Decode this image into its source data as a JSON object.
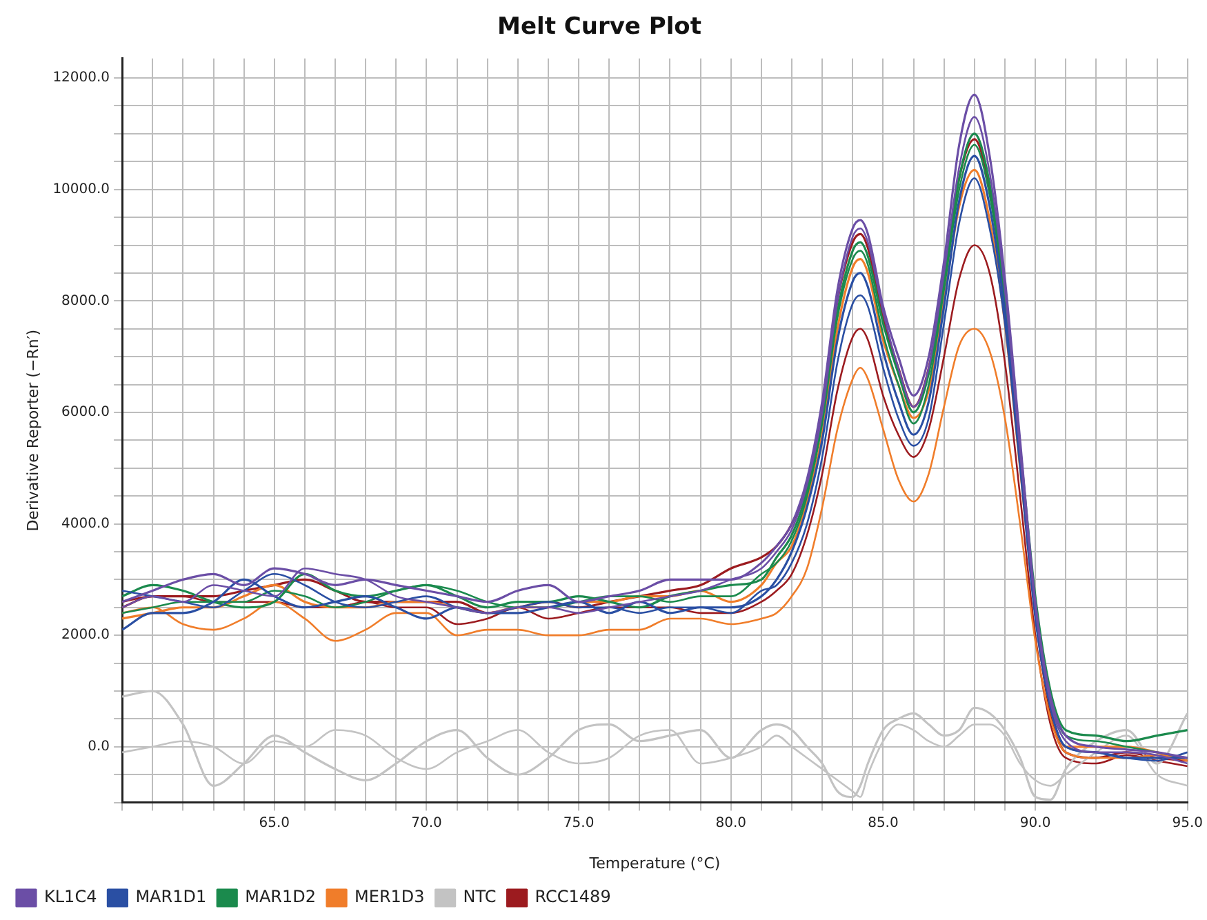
{
  "chart_data": {
    "type": "line",
    "title": "Melt Curve Plot",
    "xlabel": "Temperature (°C)",
    "ylabel": "Derivative Reporter (−Rn′)",
    "x": [
      60,
      61,
      62,
      63,
      64,
      65,
      66,
      67,
      68,
      69,
      70,
      71,
      72,
      73,
      74,
      75,
      76,
      77,
      78,
      79,
      80,
      81,
      81.5,
      82,
      82.5,
      83,
      83.5,
      84,
      84.25,
      84.5,
      85,
      85.5,
      86,
      86.5,
      87,
      87.5,
      88,
      88.5,
      89,
      89.5,
      90,
      90.5,
      91,
      92,
      93,
      94,
      95
    ],
    "xlim": [
      60,
      95
    ],
    "xticks": [
      {
        "value": 60,
        "label": null
      },
      {
        "value": 61,
        "label": null
      },
      {
        "value": 62,
        "label": null
      },
      {
        "value": 63,
        "label": null
      },
      {
        "value": 64,
        "label": null
      },
      {
        "value": 65,
        "label": "65.0"
      },
      {
        "value": 66,
        "label": null
      },
      {
        "value": 67,
        "label": null
      },
      {
        "value": 68,
        "label": null
      },
      {
        "value": 69,
        "label": null
      },
      {
        "value": 70,
        "label": "70.0"
      },
      {
        "value": 71,
        "label": null
      },
      {
        "value": 72,
        "label": null
      },
      {
        "value": 73,
        "label": null
      },
      {
        "value": 74,
        "label": null
      },
      {
        "value": 75,
        "label": "75.0"
      },
      {
        "value": 76,
        "label": null
      },
      {
        "value": 77,
        "label": null
      },
      {
        "value": 78,
        "label": null
      },
      {
        "value": 79,
        "label": null
      },
      {
        "value": 80,
        "label": "80.0"
      },
      {
        "value": 81,
        "label": null
      },
      {
        "value": 82,
        "label": null
      },
      {
        "value": 83,
        "label": null
      },
      {
        "value": 84,
        "label": null
      },
      {
        "value": 85,
        "label": "85.0"
      },
      {
        "value": 86,
        "label": null
      },
      {
        "value": 87,
        "label": null
      },
      {
        "value": 88,
        "label": null
      },
      {
        "value": 89,
        "label": null
      },
      {
        "value": 90,
        "label": "90.0"
      },
      {
        "value": 91,
        "label": null
      },
      {
        "value": 92,
        "label": null
      },
      {
        "value": 93,
        "label": null
      },
      {
        "value": 94,
        "label": null
      },
      {
        "value": 95,
        "label": "95.0"
      }
    ],
    "ylim": [
      -1000,
      12350
    ],
    "yticks": [
      {
        "value": -1000,
        "label": null
      },
      {
        "value": -500,
        "label": null
      },
      {
        "value": 0,
        "label": "0.0"
      },
      {
        "value": 500,
        "label": null
      },
      {
        "value": 1000,
        "label": null
      },
      {
        "value": 1500,
        "label": null
      },
      {
        "value": 2000,
        "label": "2000.0"
      },
      {
        "value": 2500,
        "label": null
      },
      {
        "value": 3000,
        "label": null
      },
      {
        "value": 3500,
        "label": null
      },
      {
        "value": 4000,
        "label": "4000.0"
      },
      {
        "value": 4500,
        "label": null
      },
      {
        "value": 5000,
        "label": null
      },
      {
        "value": 5500,
        "label": null
      },
      {
        "value": 6000,
        "label": "6000.0"
      },
      {
        "value": 6500,
        "label": null
      },
      {
        "value": 7000,
        "label": null
      },
      {
        "value": 7500,
        "label": null
      },
      {
        "value": 8000,
        "label": "8000.0"
      },
      {
        "value": 8500,
        "label": null
      },
      {
        "value": 9000,
        "label": null
      },
      {
        "value": 9500,
        "label": null
      },
      {
        "value": 10000,
        "label": "10000.0"
      },
      {
        "value": 10500,
        "label": null
      },
      {
        "value": 11000,
        "label": null
      },
      {
        "value": 11500,
        "label": null
      },
      {
        "value": 12000,
        "label": "12000.0"
      }
    ],
    "grid": true,
    "legend": "bottom left",
    "marker": "none",
    "line_style": "solid",
    "series": [
      {
        "name": "KL1C4",
        "color": "#6b4ea6",
        "values": [
          2600,
          2800,
          3000,
          3100,
          2900,
          3200,
          3100,
          2900,
          3000,
          2900,
          2800,
          2700,
          2600,
          2800,
          2900,
          2600,
          2700,
          2800,
          3000,
          3000,
          3000,
          3300,
          3600,
          4000,
          4800,
          6200,
          8200,
          9300,
          9450,
          9200,
          7900,
          7000,
          6300,
          7000,
          8700,
          10800,
          11700,
          10600,
          8400,
          5500,
          2600,
          900,
          200,
          0,
          -50,
          -100,
          -200
        ]
      },
      {
        "color": "#6b4ea6",
        "values": [
          2500,
          2700,
          2600,
          2900,
          2800,
          2700,
          3200,
          3100,
          3000,
          2700,
          2600,
          2500,
          2400,
          2500,
          2500,
          2400,
          2500,
          2600,
          2700,
          2800,
          3000,
          3200,
          3500,
          3900,
          4700,
          6000,
          8000,
          9150,
          9300,
          9050,
          7800,
          6800,
          6100,
          6800,
          8500,
          10400,
          11300,
          10300,
          8200,
          5300,
          2500,
          800,
          100,
          -100,
          -100,
          -150,
          -300
        ]
      },
      {
        "name": "MAR1D1",
        "color": "#2a4fa3",
        "values": [
          2100,
          2400,
          2400,
          2600,
          3000,
          2700,
          2500,
          2600,
          2700,
          2500,
          2300,
          2500,
          2400,
          2400,
          2500,
          2600,
          2400,
          2600,
          2400,
          2500,
          2500,
          2700,
          3000,
          3500,
          4300,
          5500,
          7300,
          8350,
          8500,
          8250,
          7100,
          6200,
          5600,
          6200,
          7900,
          9800,
          10600,
          9700,
          7800,
          5200,
          2400,
          700,
          0,
          -100,
          -200,
          -200,
          -200
        ]
      },
      {
        "color": "#2a4fa3",
        "values": [
          2800,
          2700,
          2600,
          2500,
          2800,
          3100,
          2900,
          2600,
          2500,
          2600,
          2700,
          2500,
          2400,
          2500,
          2600,
          2500,
          2500,
          2400,
          2500,
          2500,
          2400,
          2800,
          2900,
          3300,
          4000,
          5200,
          6900,
          7950,
          8100,
          7900,
          6800,
          5900,
          5400,
          5900,
          7600,
          9400,
          10200,
          9300,
          7600,
          5000,
          2300,
          700,
          0,
          -100,
          -200,
          -250,
          -100
        ]
      },
      {
        "name": "MAR1D2",
        "color": "#1b8a4d",
        "values": [
          2700,
          2900,
          2800,
          2600,
          2500,
          2600,
          3100,
          2800,
          2700,
          2800,
          2900,
          2700,
          2500,
          2600,
          2600,
          2700,
          2600,
          2500,
          2700,
          2800,
          2900,
          3000,
          3400,
          3800,
          4600,
          5900,
          7800,
          8900,
          9050,
          8800,
          7600,
          6700,
          6000,
          6700,
          8300,
          10200,
          11000,
          10100,
          8100,
          5400,
          2700,
          1000,
          300,
          200,
          100,
          200,
          300
        ]
      },
      {
        "color": "#1b8a4d",
        "values": [
          2400,
          2500,
          2600,
          2600,
          2600,
          2800,
          2700,
          2500,
          2600,
          2800,
          2900,
          2800,
          2600,
          2500,
          2500,
          2600,
          2700,
          2700,
          2600,
          2700,
          2700,
          3100,
          3300,
          3700,
          4500,
          5800,
          7700,
          8750,
          8900,
          8650,
          7400,
          6500,
          5800,
          6500,
          8200,
          10000,
          10800,
          9900,
          8000,
          5300,
          2600,
          900,
          200,
          100,
          0,
          -100,
          -200
        ]
      },
      {
        "name": "MER1D3",
        "color": "#f07d2a",
        "values": [
          2300,
          2400,
          2500,
          2500,
          2700,
          2900,
          2600,
          2500,
          2500,
          2600,
          2600,
          2500,
          2400,
          2500,
          2500,
          2600,
          2600,
          2700,
          2700,
          2800,
          2600,
          2900,
          3300,
          3600,
          4400,
          5600,
          7500,
          8600,
          8750,
          8500,
          7300,
          6500,
          5900,
          6400,
          8000,
          9700,
          10350,
          9450,
          7600,
          5000,
          2400,
          700,
          0,
          0,
          0,
          -100,
          -250
        ]
      },
      {
        "color": "#f07d2a",
        "values": [
          2400,
          2500,
          2200,
          2100,
          2300,
          2600,
          2300,
          1900,
          2100,
          2400,
          2400,
          2000,
          2100,
          2100,
          2000,
          2000,
          2100,
          2100,
          2300,
          2300,
          2200,
          2300,
          2400,
          2700,
          3200,
          4300,
          5700,
          6600,
          6800,
          6600,
          5700,
          4800,
          4400,
          4900,
          6100,
          7200,
          7500,
          7100,
          5900,
          4000,
          1900,
          500,
          -100,
          -200,
          -200,
          -150,
          -200
        ]
      },
      {
        "name": "NTC",
        "color": "#c3c3c3",
        "values": [
          900,
          1000,
          400,
          -700,
          -300,
          200,
          -100,
          -400,
          -600,
          -300,
          100,
          300,
          -200,
          -500,
          -200,
          300,
          400,
          100,
          200,
          300,
          -200,
          300,
          400,
          300,
          0,
          -300,
          -800,
          -900,
          -700,
          -300,
          300,
          500,
          600,
          400,
          200,
          300,
          700,
          600,
          300,
          -200,
          -900,
          -950,
          -400,
          100,
          300,
          -300,
          600
        ]
      },
      {
        "color": "#c3c3c3",
        "values": [
          -100,
          0,
          100,
          0,
          -300,
          100,
          0,
          300,
          200,
          -200,
          -400,
          -100,
          100,
          300,
          -100,
          -300,
          -200,
          200,
          300,
          -300,
          -200,
          0,
          200,
          0,
          -200,
          -400,
          -600,
          -800,
          -900,
          -500,
          100,
          400,
          300,
          100,
          0,
          200,
          400,
          400,
          200,
          -300,
          -600,
          -700,
          -500,
          -100,
          200,
          -500,
          -700
        ]
      },
      {
        "name": "RCC1489",
        "color": "#9c1b1f",
        "values": [
          2500,
          2700,
          2700,
          2700,
          2800,
          2900,
          3000,
          2800,
          2600,
          2600,
          2600,
          2600,
          2400,
          2500,
          2600,
          2500,
          2600,
          2700,
          2800,
          2900,
          3200,
          3400,
          3600,
          4000,
          4700,
          6000,
          8000,
          9050,
          9200,
          8950,
          7700,
          6800,
          6100,
          6800,
          8400,
          10200,
          10900,
          10000,
          8000,
          5200,
          2400,
          600,
          -100,
          -200,
          -100,
          -200,
          -250
        ]
      },
      {
        "color": "#9c1b1f",
        "values": [
          2600,
          2700,
          2700,
          2600,
          2600,
          2600,
          2500,
          2500,
          2600,
          2500,
          2500,
          2200,
          2300,
          2500,
          2300,
          2400,
          2500,
          2500,
          2500,
          2400,
          2400,
          2600,
          2800,
          3100,
          3800,
          4900,
          6400,
          7350,
          7500,
          7300,
          6300,
          5600,
          5200,
          5700,
          7000,
          8400,
          9000,
          8500,
          6900,
          4500,
          2000,
          400,
          -200,
          -300,
          -150,
          -250,
          -350
        ]
      }
    ]
  }
}
